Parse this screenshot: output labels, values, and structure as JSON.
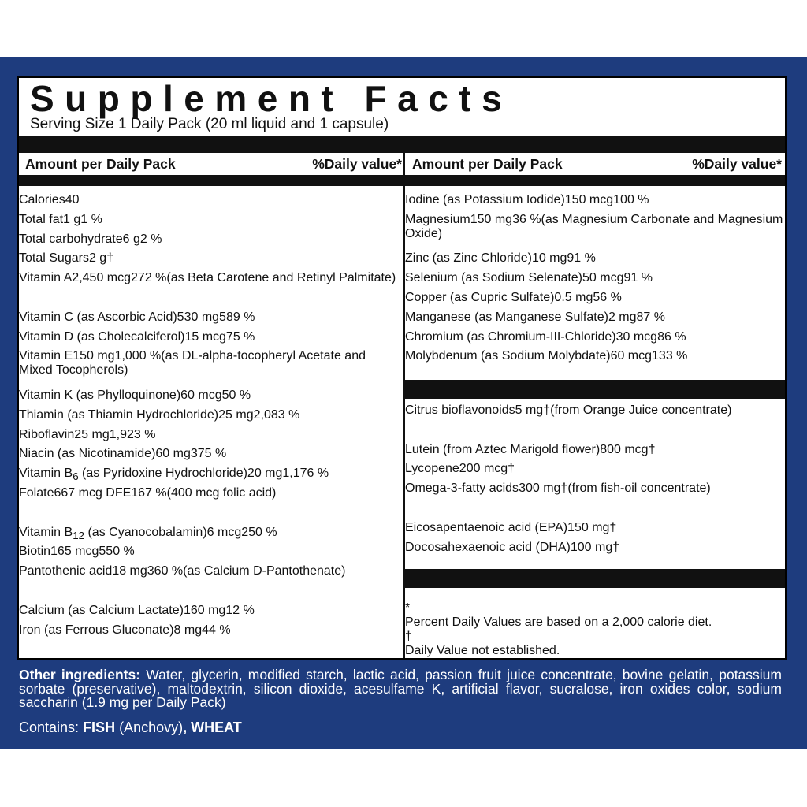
{
  "header": {
    "title": "Supplement Facts",
    "serving_size": "Serving Size 1 Daily Pack (20 ml liquid and 1 capsule)"
  },
  "columns": [
    {
      "amount_heading": "Amount per Daily Pack",
      "dv_heading": "%Daily value*"
    },
    {
      "amount_heading": "Amount per Daily Pack",
      "dv_heading": "%Daily value*"
    }
  ],
  "left_rows": [
    {
      "name": "Calories",
      "amount": "40"
    },
    {
      "name": "Total fat",
      "amount": "1 g",
      "dv": "1 %"
    },
    {
      "name": "Total carbohydrate",
      "amount": "6 g",
      "dv": "2 %"
    },
    {
      "name": "Total Sugars",
      "amount": "2 g",
      "dv": "†",
      "indent": true
    },
    {
      "name": "Vitamin A",
      "amount": "2,450 mcg",
      "dv": "272 %",
      "note": "(as Beta Carotene and Retinyl Palmitate)"
    },
    {
      "name": "Vitamin C (as Ascorbic Acid)",
      "amount": "530 mg",
      "dv": "589 %"
    },
    {
      "name": "Vitamin D (as Cholecalciferol)",
      "amount": "15 mcg",
      "dv": "75 %"
    },
    {
      "name": "Vitamin E",
      "amount": "150 mg",
      "dv": "1,000 %",
      "note": "(as DL-alpha-tocopheryl Acetate and Mixed Tocopherols)"
    },
    {
      "name": "Vitamin K  (as Phylloquinone)",
      "amount": "60 mcg",
      "dv": "50 %"
    },
    {
      "name": "Thiamin  (as Thiamin Hydrochloride)",
      "amount": "25 mg",
      "dv": "2,083 %"
    },
    {
      "name": "Riboflavin",
      "amount": "25 mg",
      "dv": "1,923 %"
    },
    {
      "name": "Niacin   (as Nicotinamide)",
      "amount": "60 mg",
      "dv": "375 %"
    },
    {
      "name": "Vitamin B",
      "name_sub": "6",
      "name_rest": " (as Pyridoxine Hydrochloride)",
      "amount": "20 mg",
      "dv": "1,176 %"
    },
    {
      "name": "Folate",
      "amount": "667 mcg DFE",
      "dv": "167 %",
      "amount_note": "(400 mcg folic acid)"
    },
    {
      "name": "Vitamin B",
      "name_sub": "12",
      "name_rest": " (as Cyanocobalamin)",
      "amount": "6 mcg",
      "dv": "250 %"
    },
    {
      "name": "Biotin",
      "amount": "165 mcg",
      "dv": "550 %"
    },
    {
      "name": "Pantothenic acid",
      "amount": "18 mg",
      "dv": "360 %",
      "note": "(as Calcium D-Pantothenate)"
    },
    {
      "name": "Calcium (as Calcium Lactate)",
      "amount": "160 mg",
      "dv": "12 %"
    },
    {
      "name": "Iron (as Ferrous Gluconate)",
      "amount": "8 mg",
      "dv": "44 %"
    }
  ],
  "right_rows": [
    {
      "name": "Iodine (as Potassium Iodide)",
      "amount": "150 mcg",
      "dv": "100 %"
    },
    {
      "name": "Magnesium",
      "amount": "150 mg",
      "dv": "36 %",
      "note": "(as Magnesium Carbonate and Magnesium Oxide)"
    },
    {
      "name": "Zinc (as Zinc Chloride)",
      "amount": "10 mg",
      "dv": "91 %"
    },
    {
      "name": "Selenium (as Sodium Selenate)",
      "amount": "50 mcg",
      "dv": "91 %"
    },
    {
      "name": "Copper (as Cupric Sulfate)",
      "amount": "0.5 mg",
      "dv": "56 %"
    },
    {
      "name": "Manganese (as Manganese Sulfate)",
      "amount": "2 mg",
      "dv": "87 %"
    },
    {
      "name": "Chromium (as Chromium-III-Chloride)",
      "amount": "30 mcg",
      "dv": "86 %"
    },
    {
      "name": "Molybdenum (as Sodium Molybdate)",
      "amount": "60 mcg",
      "dv": "133 %"
    }
  ],
  "other_rows": [
    {
      "name": "Citrus bioflavonoids",
      "amount": "5 mg",
      "dv": "†",
      "note": "(from Orange Juice concentrate)"
    },
    {
      "name": "Lutein (from Aztec Marigold flower)",
      "amount": "800 mcg",
      "dv": "†"
    },
    {
      "name": "Lycopene",
      "amount": "200 mcg",
      "dv": "†"
    },
    {
      "name": "Omega-3-fatty acids",
      "amount": "300 mg",
      "dv": "†",
      "note": "(from fish-oil concentrate)"
    },
    {
      "name": "Eicosapentaenoic acid (EPA)",
      "amount": "150 mg",
      "dv": "†",
      "indent": true
    },
    {
      "name": "Docosahexaenoic acid (DHA)",
      "amount": "100 mg",
      "dv": "†",
      "indent": true
    }
  ],
  "footnotes": [
    {
      "symbol": "*",
      "text": "Percent Daily Values are based on a 2,000 calorie diet."
    },
    {
      "symbol": "†",
      "text": "Daily Value not established."
    }
  ],
  "other_ingredients": {
    "label": "Other ingredients:",
    "text": "Water, glycerin, modified starch, lactic acid, passion fruit juice concentrate, bovine gelatin, potassium sorbate (preservative), maltodextrin, silicon dioxide, acesulfame K, artificial flavor, sucralose, iron oxides color, sodium saccharin (1.9 mg per Daily Pack)"
  },
  "contains": {
    "label": "Contains:",
    "parts": [
      {
        "text": "FISH",
        "bold": true
      },
      {
        "text": " (Anchovy)"
      },
      {
        "text": ", ",
        "bold": true
      },
      {
        "text": "WHEAT",
        "bold": true
      }
    ]
  }
}
